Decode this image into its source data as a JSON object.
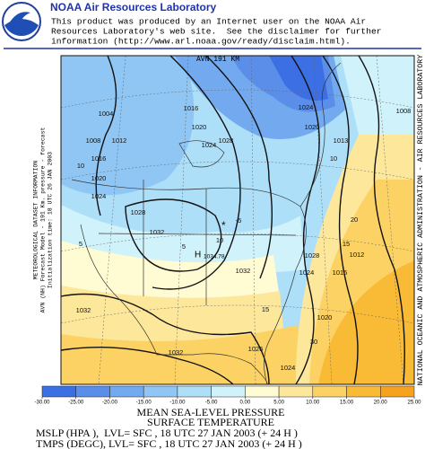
{
  "header": {
    "title": "NOAA Air Resources Laboratory",
    "lines": [
      "This product was produced by an Internet user on the NOAA Air",
      "Resources Laboratory's web site.  See the disclaimer for further",
      "information (http://www.arl.noaa.gov/ready/disclaim.html)."
    ]
  },
  "map": {
    "top_label": "AVN 191 KM",
    "left_info": [
      "METEOROLOGICAL DATASET INFORMATION",
      "AVN (NH) Forecast Model - 191 Km. pressure - forecast",
      "Initialization time: 18 UTC 26 JAN 2003"
    ],
    "right_label": "NATIONAL OCEANIC AND ATMOSPHERIC ADMINISTRATION - AIR RESOURCES LABORATORY",
    "pressure_labels": [
      1004,
      1016,
      1020,
      1024,
      1028,
      1024,
      1020,
      1008,
      1008,
      1012,
      1016,
      1020,
      1024,
      1028,
      1032,
      1013,
      1028,
      1032,
      1024,
      1016,
      1012,
      1020,
      1032,
      1032,
      1026,
      1024
    ],
    "temperature_labels": [
      10,
      10,
      5,
      5,
      -5,
      10,
      15,
      15,
      20,
      30
    ],
    "high_label": "H",
    "high_value": "1034.78"
  },
  "colorbar": {
    "colors": [
      "#3b6fe3",
      "#5b8ee9",
      "#72a9ef",
      "#8fc6f4",
      "#aedff8",
      "#cff2fb",
      "#fffbd2",
      "#fde79b",
      "#fbd263",
      "#f9ba35",
      "#f7a21f"
    ],
    "ticks": [
      {
        "value": -30,
        "label": "-30.00"
      },
      {
        "value": -25,
        "label": "-25.00"
      },
      {
        "value": -20,
        "label": "-20.00"
      },
      {
        "value": -15,
        "label": "-15.00"
      },
      {
        "value": -10,
        "label": "-10.00"
      },
      {
        "value": -5,
        "label": "-5.00"
      },
      {
        "value": 0,
        "label": "0.00"
      },
      {
        "value": 5,
        "label": "5.00"
      },
      {
        "value": 10,
        "label": "10.00"
      },
      {
        "value": 15,
        "label": "15.00"
      },
      {
        "value": 20,
        "label": "20.00"
      },
      {
        "value": 25,
        "label": "25.00"
      }
    ]
  },
  "footer": {
    "lines": [
      "MEAN SEA-LEVEL PRESSURE",
      "SURFACE TEMPERATURE",
      "MSLP (HPA ),  LVL= SFC , 18 UTC 27 JAN 2003 (+ 24 H )",
      "TMPS (DEGC), LVL= SFC , 18 UTC 27 JAN 2003 (+ 24 H )"
    ]
  }
}
